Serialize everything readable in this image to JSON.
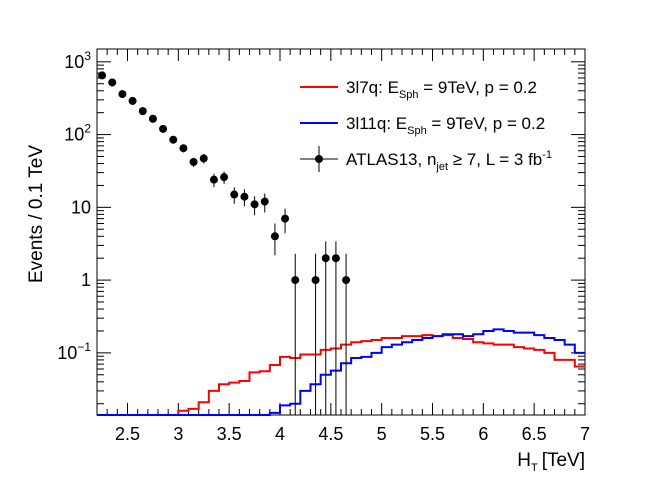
{
  "chart_data": {
    "type": "histogram",
    "title": "",
    "xlabel": "H",
    "xlabel_sub": "T",
    "xlabel_unit": "[TeV]",
    "ylabel": "Events / 0.1 TeV",
    "yscale": "log",
    "xlim": [
      2.2,
      7.0
    ],
    "ylim": [
      0.014,
      1500
    ],
    "bin_width": 0.1,
    "x_ticks": [
      2.5,
      3,
      3.5,
      4,
      4.5,
      5,
      5.5,
      6,
      6.5,
      7
    ],
    "x_tick_labels": [
      "2.5",
      "3",
      "3.5",
      "4",
      "4.5",
      "5",
      "5.5",
      "6",
      "6.5",
      "7"
    ],
    "y_ticks": [
      {
        "value": 0.1,
        "base": "10",
        "exp": "−1",
        "text": ""
      },
      {
        "value": 1,
        "base": "",
        "exp": "",
        "text": "1"
      },
      {
        "value": 10,
        "base": "",
        "exp": "",
        "text": "10"
      },
      {
        "value": 100,
        "base": "10",
        "exp": "2",
        "text": ""
      },
      {
        "value": 1000,
        "base": "10",
        "exp": "3",
        "text": ""
      }
    ],
    "legend": [
      {
        "key": "red",
        "label": "3l7q:   E",
        "sub": "Sph",
        "rest": " = 9TeV, p = 0.2",
        "sup": ""
      },
      {
        "key": "blue",
        "label": "3l11q: E",
        "sub": "Sph",
        "rest": " = 9TeV, p = 0.2",
        "sup": ""
      },
      {
        "key": "atlas",
        "label": "ATLAS13, n",
        "sub": "jet",
        "rest": " ≥ 7, L = 3 fb",
        "sup": "-1"
      }
    ],
    "series": [
      {
        "name": "3l7q",
        "style": "step",
        "color": "#ff0000",
        "edges": [
          2.2,
          2.3,
          2.4,
          2.5,
          2.6,
          2.7,
          2.8,
          2.9,
          3.0,
          3.1,
          3.2,
          3.3,
          3.4,
          3.5,
          3.6,
          3.7,
          3.8,
          3.9,
          4.0,
          4.1,
          4.2,
          4.3,
          4.4,
          4.5,
          4.6,
          4.7,
          4.8,
          4.9,
          5.0,
          5.1,
          5.2,
          5.3,
          5.4,
          5.5,
          5.6,
          5.7,
          5.8,
          5.9,
          6.0,
          6.1,
          6.2,
          6.3,
          6.4,
          6.5,
          6.6,
          6.7,
          6.8,
          6.9,
          7.0
        ],
        "values": [
          0,
          0,
          0,
          0,
          0,
          0,
          0.014,
          0.014,
          0.016,
          0.017,
          0.021,
          0.03,
          0.037,
          0.039,
          0.041,
          0.054,
          0.056,
          0.068,
          0.088,
          0.085,
          0.095,
          0.095,
          0.11,
          0.115,
          0.13,
          0.14,
          0.145,
          0.15,
          0.16,
          0.16,
          0.17,
          0.17,
          0.175,
          0.17,
          0.175,
          0.16,
          0.155,
          0.14,
          0.135,
          0.13,
          0.13,
          0.12,
          0.115,
          0.11,
          0.1,
          0.08,
          0.08,
          0.065
        ]
      },
      {
        "name": "3l11q",
        "style": "step",
        "color": "#0000ff",
        "edges": [
          2.2,
          2.3,
          2.4,
          2.5,
          2.6,
          2.7,
          2.8,
          2.9,
          3.0,
          3.1,
          3.2,
          3.3,
          3.4,
          3.5,
          3.6,
          3.7,
          3.8,
          3.9,
          4.0,
          4.1,
          4.2,
          4.3,
          4.4,
          4.5,
          4.6,
          4.7,
          4.8,
          4.9,
          5.0,
          5.1,
          5.2,
          5.3,
          5.4,
          5.5,
          5.6,
          5.7,
          5.8,
          5.9,
          6.0,
          6.1,
          6.2,
          6.3,
          6.4,
          6.5,
          6.6,
          6.7,
          6.8,
          6.9,
          7.0
        ],
        "values": [
          0,
          0,
          0,
          0,
          0,
          0,
          0,
          0,
          0,
          0,
          0,
          0,
          0,
          0,
          0,
          0.014,
          0,
          0.015,
          0.019,
          0.02,
          0.03,
          0.037,
          0.05,
          0.057,
          0.072,
          0.085,
          0.088,
          0.1,
          0.12,
          0.13,
          0.14,
          0.15,
          0.16,
          0.17,
          0.18,
          0.18,
          0.17,
          0.18,
          0.2,
          0.21,
          0.2,
          0.19,
          0.19,
          0.175,
          0.16,
          0.15,
          0.13,
          0.1
        ]
      },
      {
        "name": "ATLAS13",
        "style": "points",
        "color": "#000000",
        "points": [
          {
            "x": 2.25,
            "y": 650,
            "lo": 580,
            "hi": 720
          },
          {
            "x": 2.35,
            "y": 520,
            "lo": 460,
            "hi": 580
          },
          {
            "x": 2.45,
            "y": 360,
            "lo": 320,
            "hi": 400
          },
          {
            "x": 2.55,
            "y": 290,
            "lo": 255,
            "hi": 325
          },
          {
            "x": 2.65,
            "y": 210,
            "lo": 185,
            "hi": 240
          },
          {
            "x": 2.75,
            "y": 165,
            "lo": 145,
            "hi": 185
          },
          {
            "x": 2.85,
            "y": 120,
            "lo": 105,
            "hi": 135
          },
          {
            "x": 2.95,
            "y": 85,
            "lo": 75,
            "hi": 95
          },
          {
            "x": 3.05,
            "y": 65,
            "lo": 57,
            "hi": 73
          },
          {
            "x": 3.15,
            "y": 42,
            "lo": 36,
            "hi": 48
          },
          {
            "x": 3.25,
            "y": 47,
            "lo": 40,
            "hi": 54
          },
          {
            "x": 3.35,
            "y": 24,
            "lo": 19,
            "hi": 29
          },
          {
            "x": 3.45,
            "y": 26,
            "lo": 21,
            "hi": 31
          },
          {
            "x": 3.55,
            "y": 15,
            "lo": 11.2,
            "hi": 18.8
          },
          {
            "x": 3.65,
            "y": 14,
            "lo": 10.3,
            "hi": 17.7
          },
          {
            "x": 3.75,
            "y": 11,
            "lo": 7.8,
            "hi": 14.2
          },
          {
            "x": 3.85,
            "y": 12,
            "lo": 8.5,
            "hi": 15.5
          },
          {
            "x": 3.95,
            "y": 4,
            "lo": 2.2,
            "hi": 6.0
          },
          {
            "x": 4.05,
            "y": 7,
            "lo": 4.4,
            "hi": 9.6
          },
          {
            "x": 4.15,
            "y": 1,
            "lo": 0.0,
            "hi": 2.3
          },
          {
            "x": 4.35,
            "y": 1,
            "lo": 0.0,
            "hi": 2.3
          },
          {
            "x": 4.45,
            "y": 2,
            "lo": 0.0,
            "hi": 3.4
          },
          {
            "x": 4.55,
            "y": 2,
            "lo": 0.0,
            "hi": 3.4
          },
          {
            "x": 4.65,
            "y": 1,
            "lo": 0.0,
            "hi": 2.3
          }
        ]
      }
    ]
  }
}
